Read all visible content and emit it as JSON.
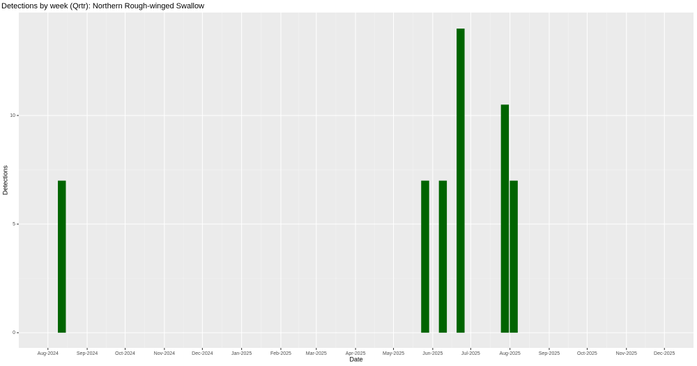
{
  "chart_data": {
    "type": "bar",
    "title": "Detections by week (Qrtr): Northern Rough-winged Swallow",
    "xlabel": "Date",
    "ylabel": "Detections",
    "x": [
      "2024-08-12",
      "2025-05-26",
      "2025-06-09",
      "2025-06-23",
      "2025-07-28",
      "2025-08-04"
    ],
    "values": [
      7,
      7,
      7,
      14,
      10.5,
      7
    ],
    "color": "#006400",
    "xlim": [
      "2024-07-09",
      "2025-12-24"
    ],
    "xticks": [
      {
        "value": "2024-08-01",
        "label": "Aug-2024"
      },
      {
        "value": "2024-09-01",
        "label": "Sep-2024"
      },
      {
        "value": "2024-10-01",
        "label": "Oct-2024"
      },
      {
        "value": "2024-11-01",
        "label": "Nov-2024"
      },
      {
        "value": "2024-12-01",
        "label": "Dec-2024"
      },
      {
        "value": "2025-01-01",
        "label": "Jan-2025"
      },
      {
        "value": "2025-02-01",
        "label": "Feb-2025"
      },
      {
        "value": "2025-03-01",
        "label": "Mar-2025"
      },
      {
        "value": "2025-04-01",
        "label": "Apr-2025"
      },
      {
        "value": "2025-05-01",
        "label": "May-2025"
      },
      {
        "value": "2025-06-01",
        "label": "Jun-2025"
      },
      {
        "value": "2025-07-01",
        "label": "Jul-2025"
      },
      {
        "value": "2025-08-01",
        "label": "Aug-2025"
      },
      {
        "value": "2025-09-01",
        "label": "Sep-2025"
      },
      {
        "value": "2025-10-01",
        "label": "Oct-2025"
      },
      {
        "value": "2025-11-01",
        "label": "Nov-2025"
      },
      {
        "value": "2025-12-01",
        "label": "Dec-2025"
      }
    ],
    "ylim": [
      -0.7,
      14.74
    ],
    "yticks": [
      0,
      5,
      10
    ],
    "grid": true
  }
}
